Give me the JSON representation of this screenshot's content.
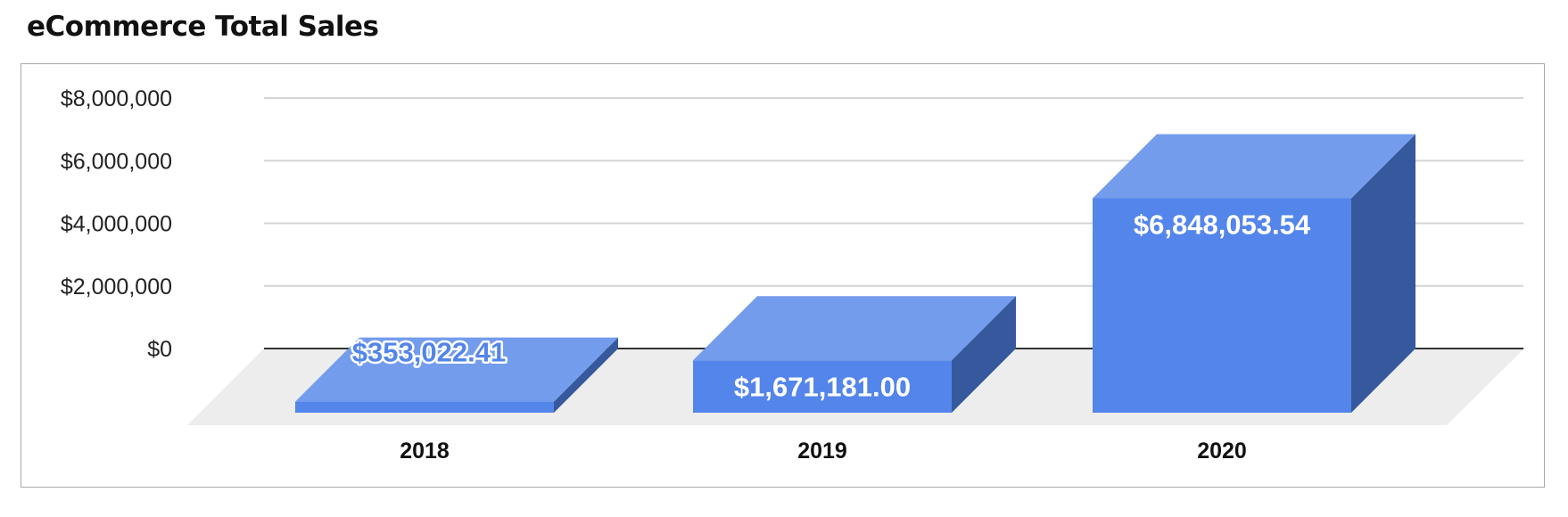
{
  "title": "eCommerce Total Sales",
  "colors": {
    "bar_front": "#5385EA",
    "bar_top": "#739CEC",
    "bar_side": "#36589C",
    "floor": "#EDEDED",
    "gridline": "#D4D4D4",
    "baseline": "#333333",
    "frame_border": "#A8A8A8",
    "label_inside": "#FFFFFF",
    "label_outlined_fill": "#5385EA"
  },
  "y_axis": {
    "ticks": [
      "$8,000,000",
      "$6,000,000",
      "$4,000,000",
      "$2,000,000",
      "$0"
    ]
  },
  "x_axis": {
    "labels": [
      "2018",
      "2019",
      "2020"
    ]
  },
  "bars": [
    {
      "category": "2018",
      "value": 353022.41,
      "label": "$353,022.41"
    },
    {
      "category": "2019",
      "value": 1671181.0,
      "label": "$1,671,181.00"
    },
    {
      "category": "2020",
      "value": 6848053.54,
      "label": "$6,848,053.54"
    }
  ],
  "chart_data": {
    "type": "bar",
    "title": "eCommerce Total Sales",
    "categories": [
      "2018",
      "2019",
      "2020"
    ],
    "values": [
      353022.41,
      1671181.0,
      6848053.54
    ],
    "data_labels": [
      "$353,022.41",
      "$1,671,181.00",
      "$6,848,053.54"
    ],
    "xlabel": "",
    "ylabel": "",
    "ylim": [
      0,
      8000000
    ],
    "y_ticks": [
      0,
      2000000,
      4000000,
      6000000,
      8000000
    ],
    "y_tick_labels": [
      "$0",
      "$2,000,000",
      "$4,000,000",
      "$6,000,000",
      "$8,000,000"
    ],
    "grid": true,
    "legend": "none",
    "style": "3d"
  }
}
